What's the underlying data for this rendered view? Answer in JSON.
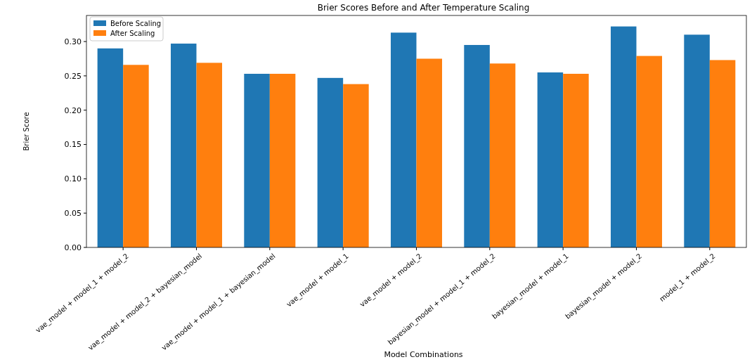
{
  "chart_data": {
    "type": "bar",
    "title": "Brier Scores Before and After Temperature Scaling",
    "xlabel": "Model Combinations",
    "ylabel": "Brier Score",
    "categories": [
      "vae_model + model_1 + model_2",
      "vae_model + model_2 + bayesian_model",
      "vae_model + model_1 + bayesian_model",
      "vae_model + model_1",
      "vae_model + model_2",
      "bayesian_model + model_1 + model_2",
      "bayesian_model + model_1",
      "bayesian_model + model_2",
      "model_1 + model_2"
    ],
    "series": [
      {
        "name": "Before Scaling",
        "color": "#1f77b4",
        "values": [
          0.29,
          0.297,
          0.253,
          0.247,
          0.313,
          0.295,
          0.255,
          0.322,
          0.31
        ]
      },
      {
        "name": "After Scaling",
        "color": "#ff7f0e",
        "values": [
          0.266,
          0.269,
          0.253,
          0.238,
          0.275,
          0.268,
          0.253,
          0.279,
          0.273
        ]
      }
    ],
    "ylim": [
      0,
      0.338
    ],
    "yticks": [
      {
        "value": 0,
        "label": "0.00"
      },
      {
        "value": 0.05,
        "label": "0.05"
      },
      {
        "value": 0.1,
        "label": "0.10"
      },
      {
        "value": 0.15,
        "label": "0.15"
      },
      {
        "value": 0.2,
        "label": "0.20"
      },
      {
        "value": 0.25,
        "label": "0.25"
      },
      {
        "value": 0.3,
        "label": "0.30"
      }
    ],
    "legend": "top left"
  }
}
